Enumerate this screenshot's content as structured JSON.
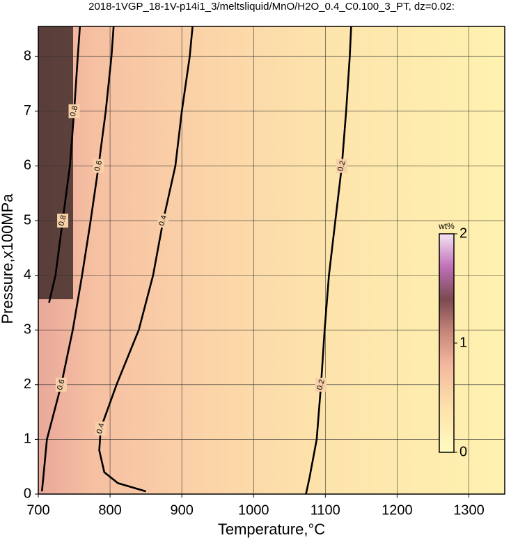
{
  "chart_data": {
    "type": "contour",
    "title": "2018-1VGP_18-1V-p14i1_3/meltsliquid/MnO/H2O_0.4_C0.100_3_PT, dz=0.02:",
    "x_label": "Temperature,°C",
    "y_label": "Pressure,x100MPa",
    "xlim": [
      700,
      1350
    ],
    "ylim": [
      0,
      8.55
    ],
    "xticks": [
      700,
      800,
      900,
      1000,
      1100,
      1200,
      1300
    ],
    "yticks": [
      0,
      1,
      2,
      3,
      4,
      5,
      6,
      7,
      8
    ],
    "grid": true,
    "contours": [
      {
        "level": 0.2,
        "temperature": [
          1073,
          1078,
          1088,
          1094,
          1099,
          1105,
          1114,
          1123,
          1129,
          1134,
          1136
        ],
        "pressure": [
          0,
          0.3,
          1,
          2,
          3,
          4,
          5,
          6,
          7,
          8,
          8.55
        ]
      },
      {
        "level": 0.4,
        "temperature": [
          850,
          811,
          792,
          785,
          787,
          809,
          840,
          860,
          874,
          891,
          900,
          911,
          915
        ],
        "pressure": [
          0.05,
          0.2,
          0.4,
          0.8,
          1.2,
          2,
          3,
          4,
          5,
          6,
          7,
          8,
          8.55
        ]
      },
      {
        "level": 0.6,
        "temperature": [
          705,
          707,
          712,
          732,
          748,
          761,
          773,
          784,
          794,
          802,
          805
        ],
        "pressure": [
          0.05,
          0.3,
          1,
          2,
          3,
          4,
          5,
          6,
          7,
          8,
          8.55
        ]
      },
      {
        "level": 0.8,
        "temperature": [
          715,
          724,
          734,
          744,
          750,
          755,
          758
        ],
        "pressure": [
          3.5,
          4,
          5,
          6,
          7,
          8,
          8.55
        ]
      }
    ],
    "colorbar": {
      "label": "wt%",
      "lim": [
        0,
        2
      ],
      "ticks": [
        0,
        1,
        2
      ]
    }
  }
}
